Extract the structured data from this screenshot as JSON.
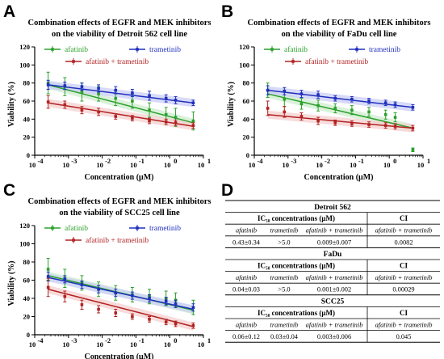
{
  "panel_letters": [
    "A",
    "B",
    "C",
    "D"
  ],
  "colors": {
    "afatinib": "#2ca02c",
    "trametinib": "#1f2fbd",
    "combo": "#b22222",
    "band_afatinib": "#cdeccd",
    "band_trametinib": "#c9cdf5",
    "band_combo": "#f6cfcf"
  },
  "chart_data": [
    {
      "type": "scatter",
      "title_lines": [
        "Combination effects of EGFR and MEK inhibitors",
        "on the viability of Detroit 562 cell line"
      ],
      "xlabel": "Concentration (μM)",
      "ylabel": "Viability (%)",
      "xscale": "log",
      "xlim": [
        0.0001,
        10
      ],
      "ylim": [
        0,
        120
      ],
      "x_ticks": [
        {
          "v": 0.0001,
          "base": "10",
          "exp": "-4"
        },
        {
          "v": 0.001,
          "base": "10",
          "exp": "-3"
        },
        {
          "v": 0.01,
          "base": "10",
          "exp": "-2"
        },
        {
          "v": 0.1,
          "base": "10",
          "exp": "-1"
        },
        {
          "v": 1,
          "base": "10",
          "exp": "0"
        },
        {
          "v": 10,
          "base": "10",
          "exp": "1"
        }
      ],
      "y_ticks": [
        "0",
        "20",
        "40",
        "60",
        "80",
        "100",
        "120"
      ],
      "y_tick_values": [
        0,
        20,
        40,
        60,
        80,
        100,
        120
      ],
      "x": [
        0.00025,
        0.00078,
        0.0025,
        0.0078,
        0.025,
        0.078,
        0.25,
        0.78,
        1.5,
        5
      ],
      "series": [
        {
          "name": "afatinib",
          "key": "afatinib",
          "values": [
            80,
            76,
            70,
            68,
            63,
            60,
            50,
            45,
            42,
            38
          ],
          "errors": [
            12,
            10,
            10,
            8,
            8,
            8,
            8,
            8,
            10,
            10
          ],
          "fit": [
            [
              0.00025,
              78
            ],
            [
              5,
              36
            ]
          ]
        },
        {
          "name": "trametinib",
          "key": "trametinib",
          "values": [
            78,
            77,
            76,
            74,
            72,
            69,
            66,
            63,
            61,
            58
          ],
          "errors": [
            5,
            4,
            4,
            4,
            4,
            4,
            5,
            4,
            4,
            3
          ],
          "fit": [
            [
              0.00025,
              78
            ],
            [
              5,
              58
            ]
          ]
        },
        {
          "name": "afatinib + trametinib",
          "key": "combo",
          "values": [
            59,
            56,
            50,
            48,
            43,
            41,
            38,
            37,
            36,
            33
          ],
          "errors": [
            7,
            4,
            4,
            4,
            3,
            3,
            3,
            3,
            3,
            3
          ],
          "fit": [
            [
              0.00025,
              58
            ],
            [
              5,
              32
            ]
          ]
        }
      ]
    },
    {
      "type": "scatter",
      "title_lines": [
        "Combination effects of EGFR and MEK inhibitors",
        "on the viability of FaDu cell line"
      ],
      "xlabel": "Concentration (μM)",
      "ylabel": "Viability (%)",
      "xscale": "log",
      "xlim": [
        0.0001,
        10
      ],
      "ylim": [
        0,
        120
      ],
      "x_ticks": [
        {
          "v": 0.0001,
          "base": "10",
          "exp": "-4"
        },
        {
          "v": 0.001,
          "base": "10",
          "exp": "-3"
        },
        {
          "v": 0.01,
          "base": "10",
          "exp": "-2"
        },
        {
          "v": 0.1,
          "base": "10",
          "exp": "-1"
        },
        {
          "v": 1,
          "base": "10",
          "exp": "0"
        },
        {
          "v": 10,
          "base": "10",
          "exp": "1"
        }
      ],
      "y_ticks": [
        "0",
        "20",
        "40",
        "60",
        "80",
        "100",
        "120"
      ],
      "y_tick_values": [
        0,
        20,
        40,
        60,
        80,
        100,
        120
      ],
      "x": [
        0.00025,
        0.00078,
        0.0025,
        0.0078,
        0.025,
        0.078,
        0.25,
        0.78,
        1.5,
        5
      ],
      "series": [
        {
          "name": "afatinib",
          "key": "afatinib",
          "values": [
            72,
            62,
            57,
            55,
            52,
            50,
            48,
            45,
            42,
            6
          ],
          "errors": [
            8,
            8,
            6,
            6,
            5,
            5,
            5,
            5,
            5,
            2
          ],
          "fit": [
            [
              0.00025,
              68
            ],
            [
              5,
              30
            ]
          ]
        },
        {
          "name": "trametinib",
          "key": "trametinib",
          "values": [
            72,
            71,
            68,
            67,
            63,
            62,
            60,
            58,
            56,
            53
          ],
          "errors": [
            5,
            4,
            4,
            4,
            3,
            3,
            3,
            3,
            3,
            3
          ],
          "fit": [
            [
              0.00025,
              72
            ],
            [
              5,
              53
            ]
          ]
        },
        {
          "name": "afatinib + trametinib",
          "key": "combo",
          "values": [
            52,
            48,
            43,
            38,
            36,
            35,
            34,
            33,
            32,
            30
          ],
          "errors": [
            8,
            6,
            4,
            4,
            3,
            3,
            3,
            3,
            3,
            3
          ],
          "fit": [
            [
              0.00025,
              45
            ],
            [
              5,
              30
            ]
          ]
        }
      ]
    },
    {
      "type": "scatter",
      "title_lines": [
        "Combination effects of EGFR and MEK inhibitors",
        "on the viability of SCC25 cell line"
      ],
      "xlabel": "Concentration (μM)",
      "ylabel": "Viability (%)",
      "xscale": "log",
      "xlim": [
        0.0001,
        10
      ],
      "ylim": [
        0,
        120
      ],
      "x_ticks": [
        {
          "v": 0.0001,
          "base": "10",
          "exp": "-4"
        },
        {
          "v": 0.001,
          "base": "10",
          "exp": "-3"
        },
        {
          "v": 0.01,
          "base": "10",
          "exp": "-2"
        },
        {
          "v": 0.1,
          "base": "10",
          "exp": "-1"
        },
        {
          "v": 1,
          "base": "10",
          "exp": "0"
        },
        {
          "v": 10,
          "base": "10",
          "exp": "1"
        }
      ],
      "y_ticks": [
        "0",
        "20",
        "40",
        "60",
        "80",
        "100",
        "120"
      ],
      "y_tick_values": [
        0,
        20,
        40,
        60,
        80,
        100,
        120
      ],
      "x": [
        0.00025,
        0.00078,
        0.0025,
        0.0078,
        0.025,
        0.078,
        0.25,
        0.78,
        1.5,
        5
      ],
      "series": [
        {
          "name": "afatinib",
          "key": "afatinib",
          "values": [
            72,
            62,
            57,
            50,
            46,
            44,
            42,
            40,
            38,
            30
          ],
          "errors": [
            12,
            10,
            8,
            8,
            8,
            8,
            8,
            8,
            8,
            8
          ],
          "fit": [
            [
              0.00025,
              65
            ],
            [
              5,
              27
            ]
          ]
        },
        {
          "name": "trametinib",
          "key": "trametinib",
          "values": [
            64,
            61,
            55,
            50,
            46,
            43,
            40,
            37,
            34,
            30
          ],
          "errors": [
            5,
            4,
            4,
            4,
            4,
            4,
            4,
            4,
            4,
            4
          ],
          "fit": [
            [
              0.00025,
              63
            ],
            [
              5,
              28
            ]
          ]
        },
        {
          "name": "afatinib + trametinib",
          "key": "combo",
          "values": [
            52,
            42,
            33,
            28,
            24,
            20,
            17,
            14,
            12,
            10
          ],
          "errors": [
            10,
            6,
            5,
            4,
            4,
            3,
            3,
            3,
            3,
            3
          ],
          "fit": [
            [
              0.00025,
              50
            ],
            [
              5,
              9
            ]
          ]
        }
      ]
    }
  ],
  "table": {
    "sections": [
      {
        "title": "Detroit 562",
        "ic50_header": "IC₅₀ concentrations (μM)",
        "ci_header": "CI",
        "sub": [
          "afatinib",
          "trametinib",
          "afatinib + trametinib",
          "afatinib + trametinib"
        ],
        "vals": [
          "0.43±0.34",
          ">5.0",
          "0.009±0.007",
          "0.0082"
        ]
      },
      {
        "title": "FaDu",
        "ic50_header": "IC₅₀ concentrations (μM)",
        "ci_header": "CI",
        "sub": [
          "afatinib",
          "trametinib",
          "afatinib + trametinib",
          "afatinib + trametinib"
        ],
        "vals": [
          "0.04±0.03",
          ">5.0",
          "0.001±0.002",
          "0.00029"
        ]
      },
      {
        "title": "SCC25",
        "ic50_header": "IC₅₀ concentrations (μM)",
        "ci_header": "CI",
        "sub": [
          "afatinib",
          "trametinib",
          "afatinib + trametinib",
          "afatinib + trametinib"
        ],
        "vals": [
          "0.06±0.12",
          "0.03±0.04",
          "0.003±0.006",
          "0.045"
        ]
      }
    ]
  }
}
